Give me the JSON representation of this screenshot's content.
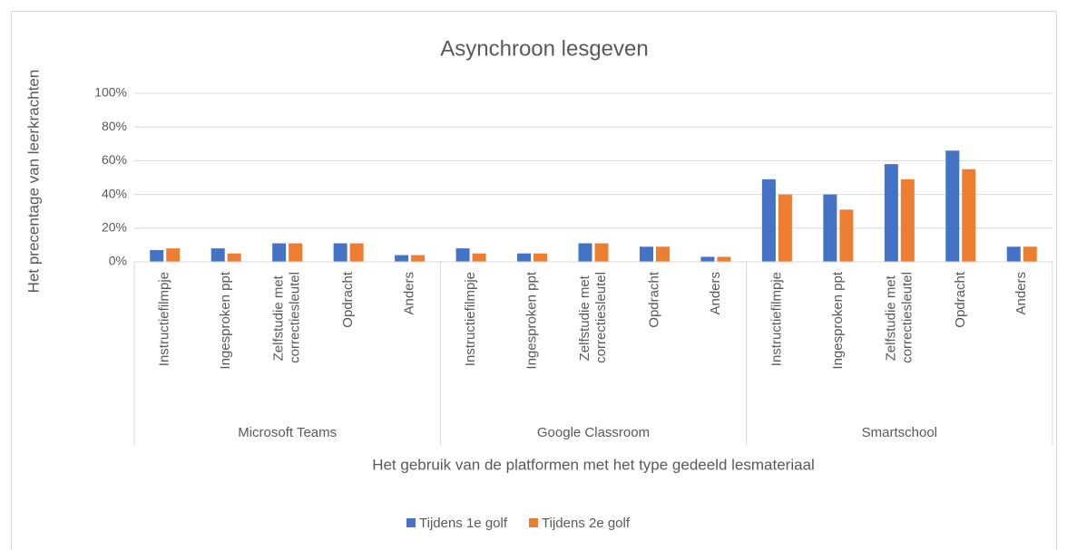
{
  "chart_data": {
    "type": "bar",
    "title": "Asynchroon lesgeven",
    "y_label": "Het precentage van leerkrachten",
    "x_label": "Het gebruik van de platformen met het type gedeeld lesmateriaal",
    "groups": [
      "Microsoft Teams",
      "Google Classroom",
      "Smartschool"
    ],
    "categories": [
      "Instructiefilmpje",
      "Ingesproken ppt",
      "Zelfstudie met correctiesleutel",
      "Opdracht",
      "Anders",
      "Instructiefilmpje",
      "Ingesproken ppt",
      "Zelfstudie met correctiesleutel",
      "Opdracht",
      "Anders",
      "Instructiefilmpje",
      "Ingesproken ppt",
      "Zelfstudie met correctiesleutel",
      "Opdracht",
      "Anders"
    ],
    "series": [
      {
        "name": "Tijdens 1e golf",
        "color": "#4472c4",
        "values": [
          7,
          8,
          11,
          11,
          4,
          8,
          5,
          11,
          9,
          3,
          49,
          40,
          58,
          66,
          9
        ]
      },
      {
        "name": "Tijdens 2e golf",
        "color": "#ed7d31",
        "values": [
          8,
          5,
          11,
          11,
          4,
          5,
          5,
          11,
          9,
          3,
          40,
          31,
          49,
          55,
          9
        ]
      }
    ],
    "ylim": [
      0,
      100
    ],
    "yticks": [
      {
        "value": 0,
        "label": "0%"
      },
      {
        "value": 20,
        "label": "20%"
      },
      {
        "value": 40,
        "label": "40%"
      },
      {
        "value": 60,
        "label": "60%"
      },
      {
        "value": 80,
        "label": "80%"
      },
      {
        "value": 100,
        "label": "100%"
      }
    ],
    "grid": true,
    "legend": "bottom"
  }
}
